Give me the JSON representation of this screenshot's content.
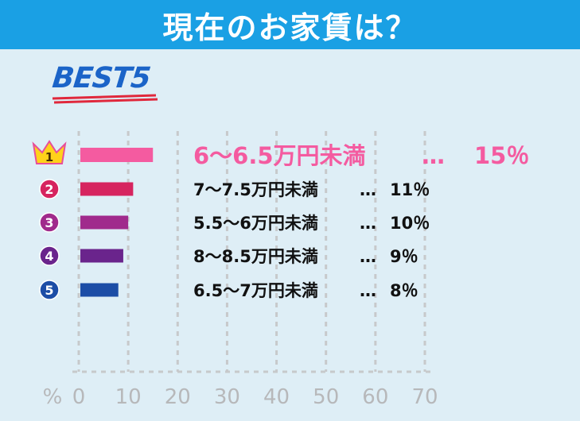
{
  "header": {
    "title": "現在のお家賃は？"
  },
  "badge": {
    "text": "BEST5"
  },
  "colors": {
    "header_bg": "#1aa0e4",
    "page_bg": "#deeef6",
    "rank1": "#f45ba0",
    "rank2": "#d6245f",
    "rank3": "#a02a8c",
    "rank4": "#6a248c",
    "rank5": "#1c4da6"
  },
  "chart_data": {
    "type": "bar",
    "orientation": "horizontal",
    "unit": "%",
    "xlim": [
      0,
      70
    ],
    "xticks": [
      "0",
      "10",
      "20",
      "30",
      "40",
      "50",
      "60",
      "70"
    ],
    "rank_labels": [
      "1",
      "2",
      "3",
      "4",
      "5"
    ],
    "categories": [
      "6〜6.5万円未満",
      "7〜7.5万円未満",
      "5.5〜6万円未満",
      "8〜8.5万円未満",
      "6.5〜7万円未満"
    ],
    "values": [
      15,
      11,
      10,
      9,
      8
    ],
    "value_labels": [
      "15％",
      "11％",
      "10％",
      "9％",
      "8％"
    ],
    "separator": "…",
    "grid": true
  }
}
